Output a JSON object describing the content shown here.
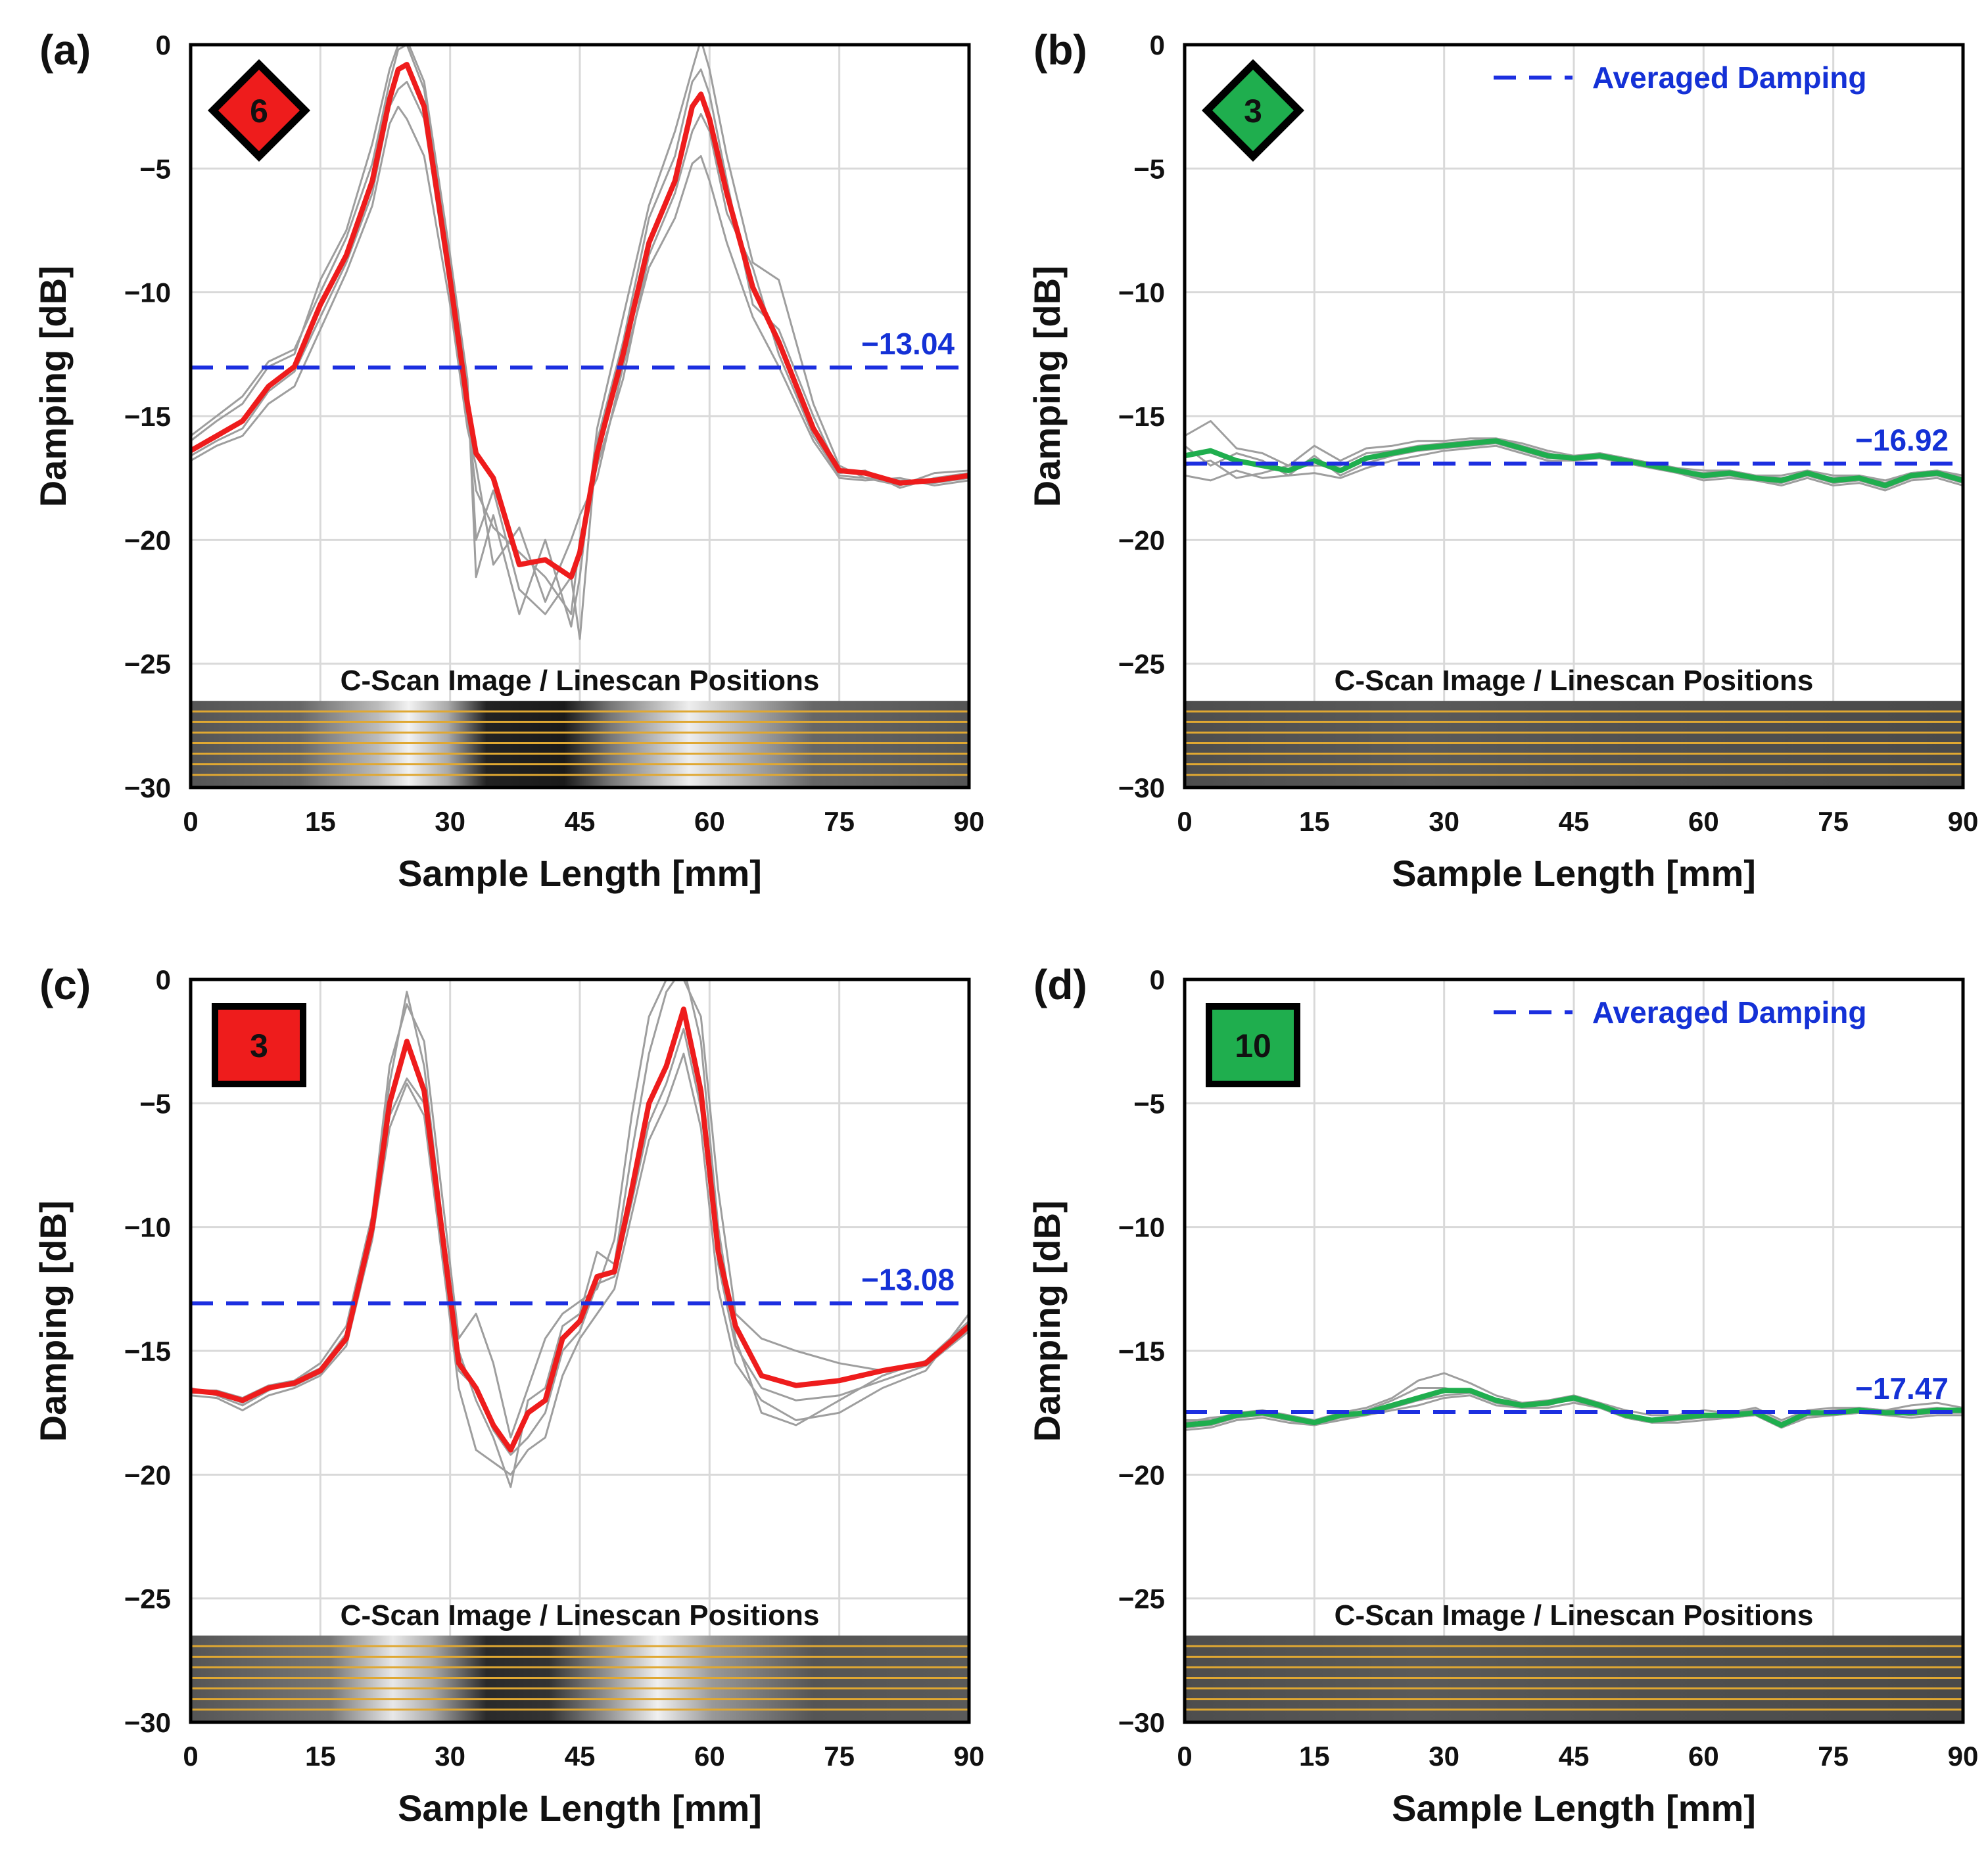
{
  "chart_data": [
    {
      "panel": "(a)",
      "type": "line",
      "xlabel": "Sample Length [mm]",
      "ylabel": "Damping [dB]",
      "xlim": [
        0,
        90
      ],
      "ylim": [
        -30,
        0
      ],
      "xticks": [
        "0",
        "15",
        "30",
        "45",
        "60",
        "75",
        "90"
      ],
      "yticks": [
        "0",
        "−5",
        "−10",
        "−15",
        "−20",
        "−25",
        "−30"
      ],
      "badge": {
        "shape": "diamond",
        "value": "6",
        "color": "#ee1c1c"
      },
      "average": {
        "value": -13.04,
        "label": "−13.04"
      },
      "legend": null,
      "cscan_caption": "C-Scan Image / Linescan Positions",
      "main_color": "#ee1c1c",
      "x": [
        0,
        3,
        6,
        9,
        12,
        15,
        18,
        21,
        23,
        24,
        25,
        27,
        30,
        32,
        33,
        35,
        38,
        41,
        44,
        45,
        47,
        50,
        53,
        56,
        58,
        59,
        60,
        62,
        65,
        68,
        72,
        75,
        78,
        82,
        86,
        90
      ],
      "series": [
        {
          "name": "mean",
          "values": [
            -16.4,
            -15.8,
            -15.2,
            -13.8,
            -13.0,
            -10.5,
            -8.5,
            -5.5,
            -2.2,
            -1.0,
            -0.8,
            -2.5,
            -9.5,
            -14.5,
            -16.5,
            -17.5,
            -21.0,
            -20.8,
            -21.5,
            -20.5,
            -16.5,
            -12.5,
            -8.0,
            -5.5,
            -2.5,
            -2.0,
            -3.0,
            -6.0,
            -9.8,
            -12.0,
            -15.5,
            -17.2,
            -17.3,
            -17.7,
            -17.6,
            -17.4
          ]
        },
        {
          "name": "linescan-1",
          "values": [
            -16.0,
            -15.2,
            -14.5,
            -13.0,
            -12.5,
            -9.5,
            -7.5,
            -4.0,
            -1.0,
            0.0,
            0.2,
            -1.5,
            -8.5,
            -13.5,
            -21.5,
            -19.0,
            -23.0,
            -20.0,
            -23.5,
            -21.5,
            -15.5,
            -11.0,
            -6.5,
            -3.5,
            -1.0,
            0.2,
            -1.0,
            -4.5,
            -8.8,
            -9.5,
            -14.5,
            -17.0,
            -17.5,
            -17.8,
            -17.3,
            -17.2
          ]
        },
        {
          "name": "linescan-2",
          "values": [
            -16.8,
            -16.2,
            -15.8,
            -14.5,
            -13.8,
            -11.5,
            -9.2,
            -6.5,
            -3.2,
            -2.5,
            -3.0,
            -4.5,
            -10.5,
            -15.5,
            -17.0,
            -21.0,
            -19.5,
            -22.5,
            -20.0,
            -19.0,
            -17.5,
            -13.0,
            -9.0,
            -7.0,
            -4.8,
            -4.5,
            -5.5,
            -8.0,
            -11.0,
            -13.0,
            -16.0,
            -17.5,
            -17.6,
            -17.5,
            -17.8,
            -17.6
          ]
        },
        {
          "name": "linescan-3",
          "values": [
            -15.8,
            -15.0,
            -14.2,
            -12.8,
            -12.3,
            -10.0,
            -7.8,
            -4.8,
            -1.5,
            -0.2,
            0.0,
            -1.8,
            -9.0,
            -14.0,
            -20.0,
            -18.0,
            -22.0,
            -23.0,
            -21.5,
            -24.0,
            -16.0,
            -12.0,
            -7.0,
            -4.5,
            -1.5,
            -1.0,
            -2.0,
            -5.5,
            -10.5,
            -11.5,
            -15.0,
            -17.3,
            -17.2,
            -17.9,
            -17.5,
            -17.3
          ]
        },
        {
          "name": "linescan-4",
          "values": [
            -16.6,
            -16.0,
            -15.5,
            -14.0,
            -13.2,
            -11.0,
            -8.8,
            -6.0,
            -2.5,
            -1.8,
            -1.5,
            -3.0,
            -10.0,
            -15.0,
            -18.0,
            -19.5,
            -20.5,
            -21.5,
            -23.0,
            -20.0,
            -17.0,
            -13.5,
            -8.5,
            -6.0,
            -3.5,
            -2.8,
            -3.5,
            -6.8,
            -9.0,
            -12.5,
            -15.8,
            -17.4,
            -17.5,
            -17.6,
            -17.7,
            -17.5
          ]
        }
      ]
    },
    {
      "panel": "(b)",
      "type": "line",
      "xlabel": "Sample Length [mm]",
      "ylabel": "Damping [dB]",
      "xlim": [
        0,
        90
      ],
      "ylim": [
        -30,
        0
      ],
      "xticks": [
        "0",
        "15",
        "30",
        "45",
        "60",
        "75",
        "90"
      ],
      "yticks": [
        "0",
        "−5",
        "−10",
        "−15",
        "−20",
        "−25",
        "−30"
      ],
      "badge": {
        "shape": "diamond",
        "value": "3",
        "color": "#1fae4e"
      },
      "average": {
        "value": -16.92,
        "label": "−16.92"
      },
      "legend": "Averaged Damping",
      "cscan_caption": "C-Scan Image / Linescan Positions",
      "main_color": "#1fae4e",
      "x": [
        0,
        3,
        6,
        9,
        12,
        15,
        18,
        21,
        24,
        27,
        30,
        33,
        36,
        39,
        42,
        45,
        48,
        51,
        54,
        57,
        60,
        63,
        66,
        69,
        72,
        75,
        78,
        81,
        84,
        87,
        90
      ],
      "series": [
        {
          "name": "mean",
          "values": [
            -16.6,
            -16.4,
            -16.8,
            -17.0,
            -17.2,
            -16.8,
            -17.2,
            -16.7,
            -16.5,
            -16.3,
            -16.2,
            -16.1,
            -16.0,
            -16.3,
            -16.6,
            -16.7,
            -16.6,
            -16.8,
            -17.0,
            -17.2,
            -17.4,
            -17.3,
            -17.5,
            -17.6,
            -17.3,
            -17.6,
            -17.5,
            -17.8,
            -17.4,
            -17.3,
            -17.6
          ]
        },
        {
          "name": "linescan-1",
          "values": [
            -15.8,
            -15.2,
            -16.3,
            -16.5,
            -17.0,
            -16.2,
            -16.8,
            -16.3,
            -16.2,
            -16.0,
            -16.0,
            -15.9,
            -15.9,
            -16.1,
            -16.4,
            -16.6,
            -16.5,
            -16.7,
            -16.9,
            -17.1,
            -17.2,
            -17.2,
            -17.4,
            -17.4,
            -17.2,
            -17.4,
            -17.4,
            -17.6,
            -17.3,
            -17.2,
            -17.4
          ]
        },
        {
          "name": "linescan-2",
          "values": [
            -17.4,
            -17.6,
            -17.2,
            -17.5,
            -17.4,
            -17.3,
            -17.5,
            -17.1,
            -16.8,
            -16.6,
            -16.4,
            -16.3,
            -16.2,
            -16.5,
            -16.8,
            -16.8,
            -16.7,
            -16.9,
            -17.1,
            -17.3,
            -17.6,
            -17.5,
            -17.6,
            -17.8,
            -17.5,
            -17.8,
            -17.7,
            -18.0,
            -17.6,
            -17.5,
            -17.8
          ]
        },
        {
          "name": "linescan-3",
          "values": [
            -16.2,
            -17.0,
            -16.5,
            -16.8,
            -17.4,
            -16.6,
            -17.4,
            -16.9,
            -16.6,
            -16.4,
            -16.3,
            -16.2,
            -16.1,
            -16.4,
            -16.7,
            -16.6,
            -16.6,
            -16.9,
            -17.0,
            -17.3,
            -17.5,
            -17.4,
            -17.6,
            -17.7,
            -17.4,
            -17.7,
            -17.6,
            -17.9,
            -17.5,
            -17.4,
            -17.7
          ]
        },
        {
          "name": "linescan-4",
          "values": [
            -17.0,
            -16.8,
            -17.5,
            -17.3,
            -17.0,
            -17.0,
            -17.0,
            -16.5,
            -16.4,
            -16.2,
            -16.1,
            -16.0,
            -15.9,
            -16.2,
            -16.5,
            -16.7,
            -16.5,
            -16.7,
            -16.9,
            -17.2,
            -17.3,
            -17.2,
            -17.4,
            -17.5,
            -17.3,
            -17.5,
            -17.4,
            -17.7,
            -17.3,
            -17.2,
            -17.5
          ]
        }
      ]
    },
    {
      "panel": "(c)",
      "type": "line",
      "xlabel": "Sample Length [mm]",
      "ylabel": "Damping [dB]",
      "xlim": [
        0,
        90
      ],
      "ylim": [
        -30,
        0
      ],
      "xticks": [
        "0",
        "15",
        "30",
        "45",
        "60",
        "75",
        "90"
      ],
      "yticks": [
        "0",
        "−5",
        "−10",
        "−15",
        "−20",
        "−25",
        "−30"
      ],
      "badge": {
        "shape": "square",
        "value": "3",
        "color": "#ee1c1c"
      },
      "average": {
        "value": -13.08,
        "label": "−13.08"
      },
      "legend": null,
      "cscan_caption": "C-Scan Image / Linescan Positions",
      "main_color": "#ee1c1c",
      "x": [
        0,
        3,
        6,
        9,
        12,
        15,
        18,
        21,
        23,
        25,
        27,
        29,
        31,
        33,
        35,
        37,
        39,
        41,
        43,
        45,
        47,
        49,
        51,
        53,
        55,
        57,
        59,
        61,
        63,
        66,
        70,
        75,
        80,
        85,
        90
      ],
      "series": [
        {
          "name": "mean",
          "values": [
            -16.6,
            -16.7,
            -17.0,
            -16.5,
            -16.3,
            -15.8,
            -14.5,
            -10.0,
            -5.0,
            -2.5,
            -4.5,
            -10.0,
            -15.5,
            -16.5,
            -18.0,
            -19.0,
            -17.5,
            -17.0,
            -14.5,
            -13.8,
            -12.0,
            -11.8,
            -8.5,
            -5.0,
            -3.5,
            -1.2,
            -4.5,
            -11.0,
            -14.0,
            -16.0,
            -16.4,
            -16.2,
            -15.8,
            -15.5,
            -14.0
          ]
        },
        {
          "name": "linescan-1",
          "values": [
            -16.5,
            -16.8,
            -17.2,
            -16.6,
            -16.2,
            -15.5,
            -14.0,
            -9.5,
            -3.5,
            -1.0,
            -2.5,
            -8.5,
            -14.5,
            -13.5,
            -15.5,
            -18.5,
            -16.5,
            -14.5,
            -13.5,
            -13.0,
            -12.5,
            -10.5,
            -5.5,
            -1.5,
            0.0,
            0.0,
            -1.5,
            -8.5,
            -13.5,
            -14.5,
            -15.0,
            -15.5,
            -15.8,
            -15.6,
            -14.2
          ]
        },
        {
          "name": "linescan-2",
          "values": [
            -16.8,
            -16.9,
            -17.4,
            -16.8,
            -16.5,
            -16.0,
            -14.8,
            -10.5,
            -6.0,
            -4.2,
            -5.5,
            -11.0,
            -16.5,
            -19.0,
            -19.5,
            -20.0,
            -19.0,
            -18.5,
            -16.0,
            -14.5,
            -13.5,
            -12.5,
            -9.5,
            -6.5,
            -5.0,
            -3.0,
            -6.0,
            -12.5,
            -15.5,
            -17.0,
            -17.8,
            -17.5,
            -16.5,
            -15.8,
            -13.5
          ]
        },
        {
          "name": "linescan-3",
          "values": [
            -16.6,
            -16.6,
            -16.9,
            -16.4,
            -16.2,
            -15.7,
            -14.3,
            -9.8,
            -4.2,
            -0.5,
            -3.5,
            -9.5,
            -15.0,
            -17.0,
            -18.5,
            -20.5,
            -17.0,
            -16.5,
            -14.0,
            -13.5,
            -11.0,
            -11.5,
            -7.0,
            -3.0,
            -0.5,
            0.5,
            -2.5,
            -10.0,
            -14.5,
            -17.5,
            -18.0,
            -17.0,
            -16.0,
            -15.4,
            -13.8
          ]
        },
        {
          "name": "linescan-4",
          "values": [
            -16.7,
            -16.7,
            -17.1,
            -16.5,
            -16.4,
            -15.9,
            -14.6,
            -10.2,
            -5.5,
            -4.0,
            -5.0,
            -10.5,
            -15.8,
            -16.5,
            -18.2,
            -19.2,
            -18.5,
            -17.5,
            -15.0,
            -14.2,
            -12.3,
            -12.0,
            -9.0,
            -5.8,
            -4.2,
            -2.0,
            -5.2,
            -11.5,
            -14.8,
            -16.5,
            -17.0,
            -16.8,
            -16.2,
            -15.6,
            -14.0
          ]
        }
      ]
    },
    {
      "panel": "(d)",
      "type": "line",
      "xlabel": "Sample Length [mm]",
      "ylabel": "Damping [dB]",
      "xlim": [
        0,
        90
      ],
      "ylim": [
        -30,
        0
      ],
      "xticks": [
        "0",
        "15",
        "30",
        "45",
        "60",
        "75",
        "90"
      ],
      "yticks": [
        "0",
        "−5",
        "−10",
        "−15",
        "−20",
        "−25",
        "−30"
      ],
      "badge": {
        "shape": "square",
        "value": "10",
        "color": "#1fae4e"
      },
      "average": {
        "value": -17.47,
        "label": "−17.47"
      },
      "legend": "Averaged Damping",
      "cscan_caption": "C-Scan Image / Linescan Positions",
      "main_color": "#1fae4e",
      "x": [
        0,
        3,
        6,
        9,
        12,
        15,
        18,
        21,
        24,
        27,
        30,
        33,
        36,
        39,
        42,
        45,
        48,
        51,
        54,
        57,
        60,
        63,
        66,
        69,
        72,
        75,
        78,
        81,
        84,
        87,
        90
      ],
      "series": [
        {
          "name": "mean",
          "values": [
            -18.0,
            -17.9,
            -17.6,
            -17.5,
            -17.7,
            -17.9,
            -17.6,
            -17.5,
            -17.2,
            -16.9,
            -16.6,
            -16.6,
            -17.0,
            -17.2,
            -17.1,
            -16.9,
            -17.2,
            -17.6,
            -17.8,
            -17.7,
            -17.6,
            -17.6,
            -17.5,
            -18.0,
            -17.5,
            -17.5,
            -17.4,
            -17.5,
            -17.5,
            -17.4,
            -17.4
          ]
        },
        {
          "name": "linescan-1",
          "values": [
            -17.8,
            -17.8,
            -17.5,
            -17.4,
            -17.6,
            -17.8,
            -17.5,
            -17.3,
            -16.9,
            -16.2,
            -15.9,
            -16.3,
            -16.8,
            -17.1,
            -17.0,
            -16.8,
            -17.1,
            -17.4,
            -17.6,
            -17.6,
            -17.4,
            -17.5,
            -17.3,
            -17.8,
            -17.4,
            -17.3,
            -17.3,
            -17.4,
            -17.2,
            -17.1,
            -17.3
          ]
        },
        {
          "name": "linescan-2",
          "values": [
            -18.2,
            -18.1,
            -17.8,
            -17.7,
            -17.9,
            -18.0,
            -17.8,
            -17.6,
            -17.4,
            -17.2,
            -16.9,
            -16.8,
            -17.2,
            -17.3,
            -17.3,
            -17.1,
            -17.3,
            -17.7,
            -17.9,
            -17.9,
            -17.8,
            -17.7,
            -17.6,
            -18.1,
            -17.7,
            -17.6,
            -17.5,
            -17.6,
            -17.7,
            -17.6,
            -17.6
          ]
        },
        {
          "name": "linescan-3",
          "values": [
            -17.9,
            -17.7,
            -17.6,
            -17.5,
            -17.7,
            -17.8,
            -17.6,
            -17.4,
            -17.0,
            -16.5,
            -16.5,
            -16.7,
            -17.0,
            -17.2,
            -17.2,
            -16.9,
            -17.2,
            -17.6,
            -17.8,
            -17.7,
            -17.6,
            -17.5,
            -17.4,
            -17.9,
            -17.5,
            -17.4,
            -17.3,
            -17.4,
            -17.4,
            -17.3,
            -17.4
          ]
        },
        {
          "name": "linescan-4",
          "values": [
            -18.1,
            -18.0,
            -17.7,
            -17.6,
            -17.8,
            -18.0,
            -17.7,
            -17.6,
            -17.3,
            -17.0,
            -16.8,
            -16.7,
            -17.1,
            -17.3,
            -17.1,
            -17.0,
            -17.3,
            -17.7,
            -17.9,
            -17.8,
            -17.7,
            -17.7,
            -17.6,
            -18.1,
            -17.6,
            -17.6,
            -17.5,
            -17.5,
            -17.6,
            -17.5,
            -17.5
          ]
        }
      ]
    }
  ]
}
